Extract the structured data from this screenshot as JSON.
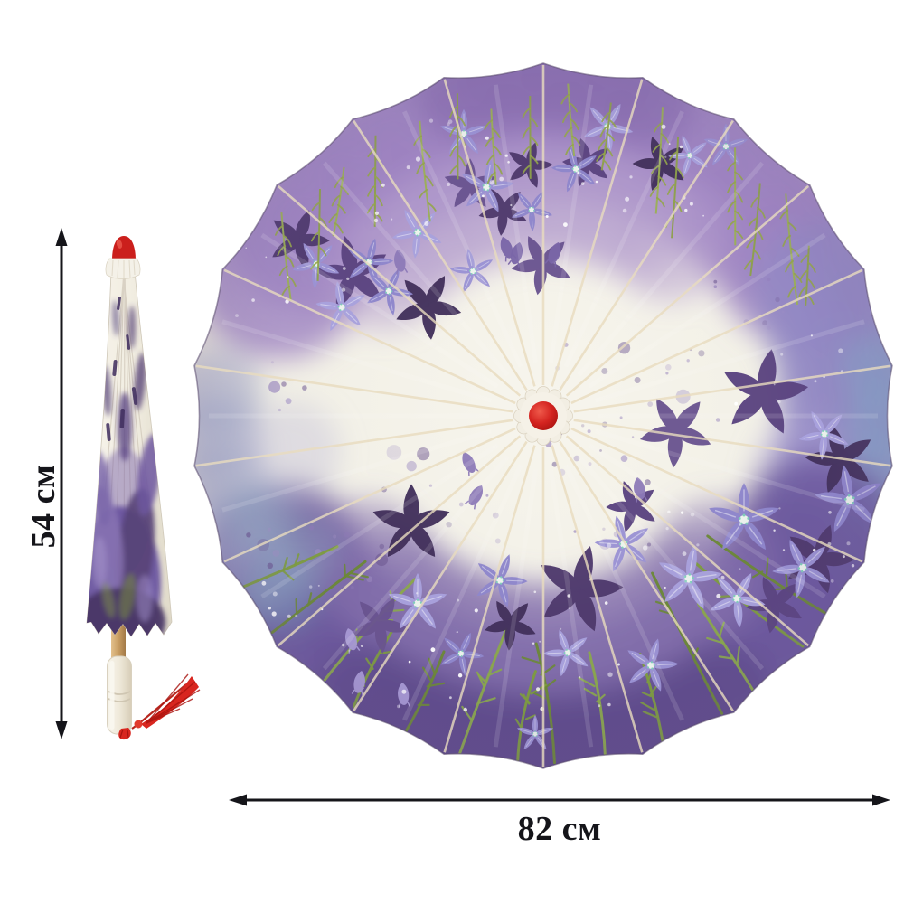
{
  "image": {
    "description": "chinese-paper-parasol-product-photo",
    "background": "#ffffff"
  },
  "labels": {
    "height": "54 см",
    "width": "82 см"
  },
  "dimensions": {
    "height_cm": 54,
    "width_cm": 82,
    "unit": "см"
  },
  "palette": {
    "arrow": "#15151a",
    "canvas_cream": "#f3f1e8",
    "wash_purple": "#9f85c2",
    "wash_deep_purple": "#5e4b8b",
    "wash_teal": "#7fb2cc",
    "lavender_flower": "#9b93d4",
    "dark_flower": "#4f3a6d",
    "leaf_green": "#7d9c3e",
    "willow_green": "#93a54a",
    "hub_red": "#ce1f1e",
    "cap_red": "#cb1f1c",
    "wood_tan": "#c99e63",
    "handle_cream": "#efe9da",
    "tassel_red": "#d8261f"
  }
}
